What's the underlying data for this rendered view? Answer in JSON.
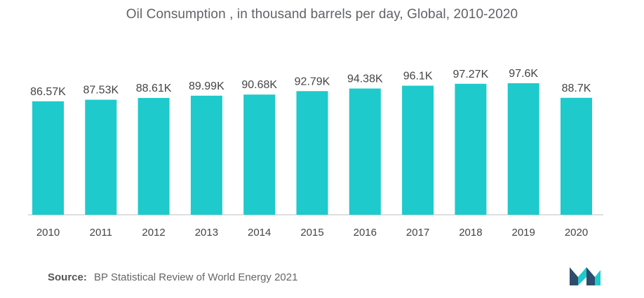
{
  "title": "Oil Consumption , in thousand barrels per day, Global, 2010-2020",
  "source": {
    "label": "Source:",
    "text": "BP Statistical Review of World Energy 2021"
  },
  "colors": {
    "bar": "#1ECACB",
    "logo_dark": "#2E4C6D",
    "logo_teal": "#1ECACB"
  },
  "logo_icon": "mordor-intelligence-logo",
  "chart_data": {
    "type": "bar",
    "title": "Oil Consumption , in thousand barrels per day, Global, 2010-2020",
    "xlabel": "",
    "ylabel": "",
    "categories": [
      "2010",
      "2011",
      "2012",
      "2013",
      "2014",
      "2015",
      "2016",
      "2017",
      "2018",
      "2019",
      "2020"
    ],
    "values": [
      86.57,
      87.53,
      88.61,
      89.99,
      90.68,
      92.79,
      94.38,
      96.1,
      97.27,
      97.6,
      88.7
    ],
    "data_labels": [
      "86.57K",
      "87.53K",
      "88.61K",
      "89.99K",
      "90.68K",
      "92.79K",
      "94.38K",
      "96.1K",
      "97.27K",
      "97.6K",
      "88.7K"
    ],
    "ylim": [
      0,
      100
    ],
    "grid": false,
    "legend": "none"
  }
}
